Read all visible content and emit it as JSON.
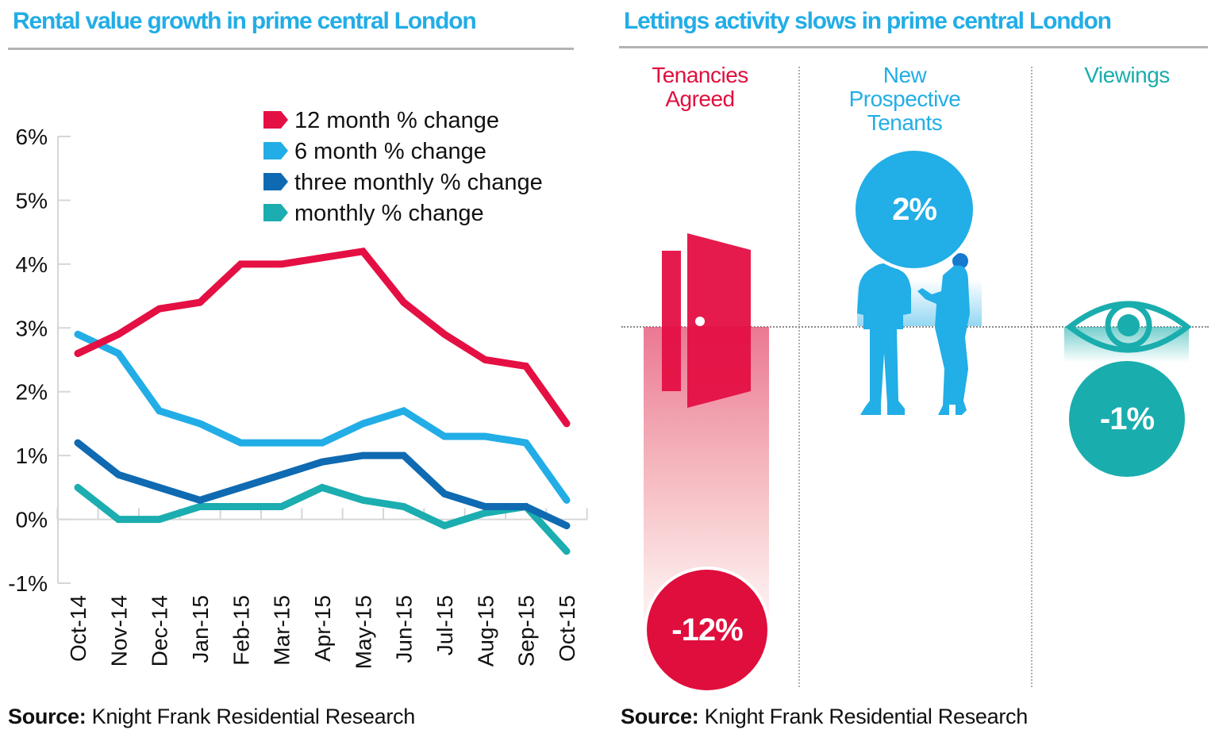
{
  "left_panel": {
    "title": "Rental value growth in prime central London",
    "source_label": "Source:",
    "source_text": " Knight Frank Residential Research"
  },
  "right_panel": {
    "title": "Lettings activity slows in prime central London",
    "source_label": "Source:",
    "source_text": " Knight Frank Residential Research",
    "columns": [
      {
        "label_lines": [
          "Tenancies",
          "Agreed"
        ],
        "value": -12,
        "value_label": "-12%",
        "color": "#e0103f",
        "icon": "door-icon"
      },
      {
        "label_lines": [
          "New",
          "Prospective",
          "Tenants"
        ],
        "value": 2,
        "value_label": "2%",
        "color": "#22aee6",
        "icon": "people-icon"
      },
      {
        "label_lines": [
          "Viewings"
        ],
        "value": -1,
        "value_label": "-1%",
        "color": "#1aadad",
        "icon": "eye-icon"
      }
    ]
  },
  "chart_data": [
    {
      "type": "line",
      "title": "Rental value growth in prime central London",
      "xlabel": "",
      "ylabel": "",
      "categories": [
        "Oct-14",
        "Nov-14",
        "Dec-14",
        "Jan-15",
        "Feb-15",
        "Mar-15",
        "Apr-15",
        "May-15",
        "Jun-15",
        "Jul-15",
        "Aug-15",
        "Sep-15",
        "Oct-15"
      ],
      "ylim": [
        -1,
        6
      ],
      "yticks": [
        -1,
        0,
        1,
        2,
        3,
        4,
        5,
        6
      ],
      "ytick_labels": [
        "-1%",
        "0%",
        "1%",
        "2%",
        "3%",
        "4%",
        "5%",
        "6%"
      ],
      "grid": false,
      "legend_position": "top-right",
      "series": [
        {
          "name": "12 month % change",
          "color": "#e40f43",
          "values": [
            2.6,
            2.9,
            3.3,
            3.4,
            4.0,
            4.0,
            4.1,
            4.2,
            3.4,
            2.9,
            2.5,
            2.4,
            1.5
          ]
        },
        {
          "name": "6 month % change",
          "color": "#22ade6",
          "values": [
            2.9,
            2.6,
            1.7,
            1.5,
            1.2,
            1.2,
            1.2,
            1.5,
            1.7,
            1.3,
            1.3,
            1.2,
            0.3
          ]
        },
        {
          "name": "three monthly % change",
          "color": "#0f6ab1",
          "values": [
            1.2,
            0.7,
            0.5,
            0.3,
            0.5,
            0.7,
            0.9,
            1.0,
            1.0,
            0.4,
            0.2,
            0.2,
            -0.1
          ]
        },
        {
          "name": "monthly % change",
          "color": "#1badaf",
          "values": [
            0.5,
            0.0,
            0.0,
            0.2,
            0.2,
            0.2,
            0.5,
            0.3,
            0.2,
            -0.1,
            0.1,
            0.2,
            -0.5
          ]
        }
      ]
    },
    {
      "type": "bar",
      "title": "Lettings activity slows in prime central London",
      "categories": [
        "Tenancies Agreed",
        "New Prospective Tenants",
        "Viewings"
      ],
      "values": [
        -12,
        2,
        -1
      ],
      "value_labels": [
        "-12%",
        "2%",
        "-1%"
      ],
      "unit": "%"
    }
  ]
}
